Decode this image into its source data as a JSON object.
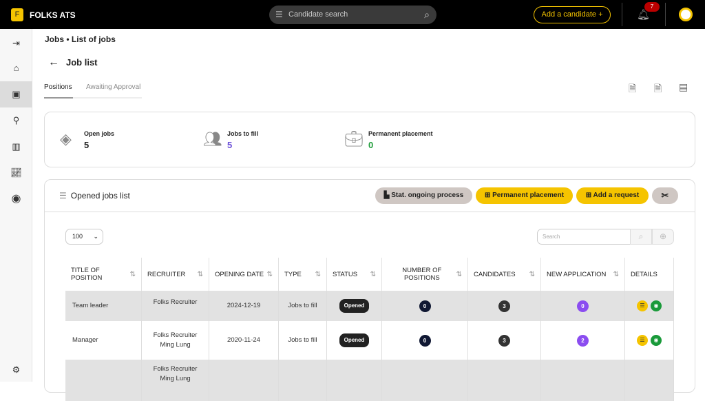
{
  "app": {
    "logo_letter": "F",
    "name": "FOLKS ATS"
  },
  "topbar": {
    "search_placeholder": "Candidate search",
    "add_candidate": "Add a candidate",
    "notifications": "7"
  },
  "breadcrumb": "Jobs • List of jobs",
  "page_title": "Job list",
  "tabs": [
    {
      "label": "Positions",
      "active": true
    },
    {
      "label": "Awaiting Approval",
      "active": false
    }
  ],
  "stats": [
    {
      "label": "Open jobs",
      "value": "5",
      "color": "#222222"
    },
    {
      "label": "Jobs to fill",
      "value": "5",
      "color": "#6b4fd8"
    },
    {
      "label": "Permanent placement",
      "value": "0",
      "color": "#1f9d3a"
    }
  ],
  "list": {
    "title": "Opened jobs list",
    "buttons": {
      "stat": "Stat. ongoing process",
      "permanent": "Permanent placement",
      "request": "Add a request"
    },
    "page_size": "100",
    "search_placeholder": "Search"
  },
  "columns": [
    "TITLE OF POSITION",
    "RECRUITER",
    "OPENING DATE",
    "TYPE",
    "STATUS",
    "NUMBER OF POSITIONS",
    "CANDIDATES",
    "NEW APPLICATION",
    "DETAILS"
  ],
  "rows": [
    {
      "title": "Team leader",
      "recruiter": [
        "Folks Recruiter"
      ],
      "date": "2024-12-19",
      "type": "Jobs to fill",
      "status": "Opened",
      "positions": "0",
      "candidates": "3",
      "new_app": "0"
    },
    {
      "title": "Manager",
      "recruiter": [
        "Folks Recruiter",
        "Ming Lung"
      ],
      "date": "2020-11-24",
      "type": "Jobs to fill",
      "status": "Opened",
      "positions": "0",
      "candidates": "3",
      "new_app": "2"
    },
    {
      "recruiter": [
        "Folks Recruiter",
        "Ming Lung"
      ]
    }
  ],
  "colors": {
    "accent": "#f5c400",
    "topbar": "#000000",
    "new_app": "#8b4df0",
    "positions": "#101833",
    "candidates": "#333333",
    "view": "#1a9a3a"
  }
}
